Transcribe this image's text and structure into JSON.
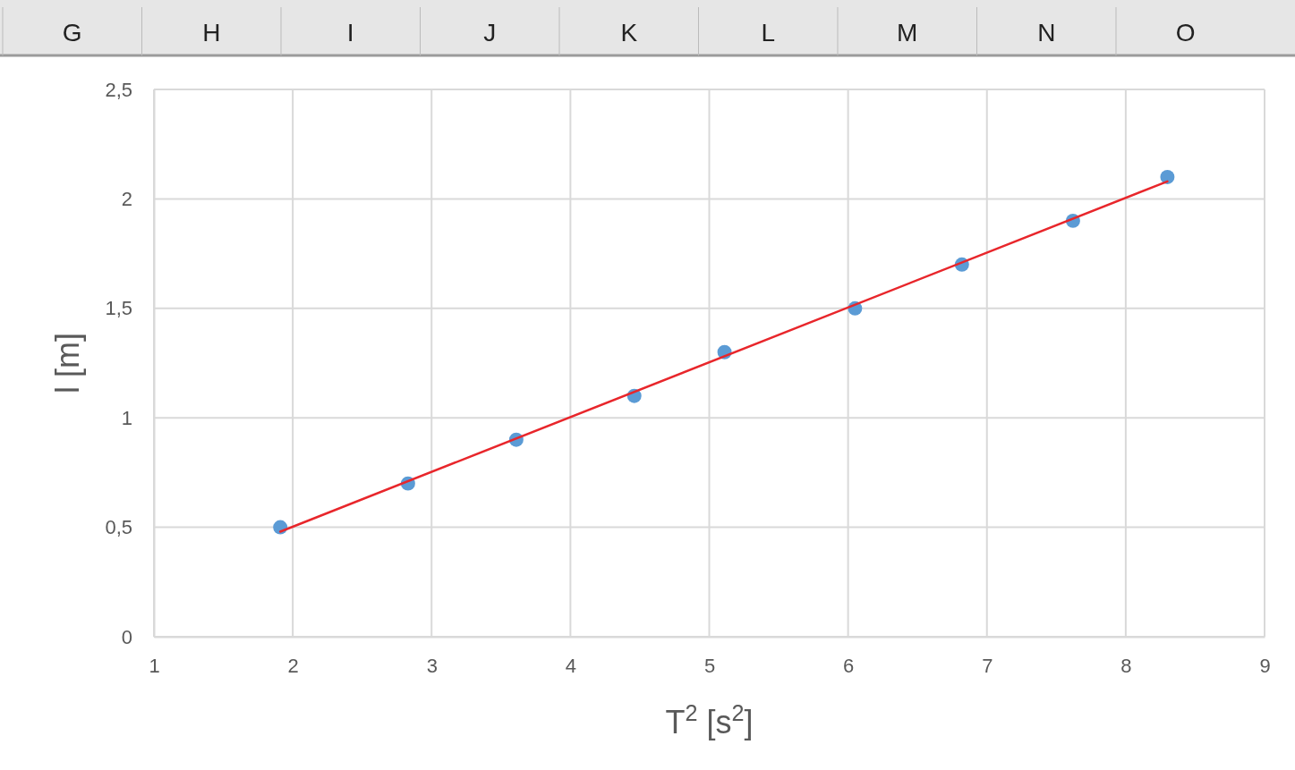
{
  "chart_data": {
    "type": "scatter",
    "xlabel": "T$^{2}$ [s$^{2}$]",
    "ylabel": "l [m]",
    "annotations": [
      "G",
      "H",
      "I",
      "J",
      "K",
      "L",
      "M",
      "N",
      "O"
    ],
    "xlim": [
      1,
      9
    ],
    "xticks": [
      1,
      2,
      3,
      4,
      5,
      6,
      7,
      8,
      9
    ],
    "ylim": [
      0,
      2.5
    ],
    "yticks": [
      0,
      {
        "value": 0.5,
        "label": "0,5"
      },
      1,
      {
        "value": 1.5,
        "label": "1,5"
      },
      2,
      {
        "value": 2.5,
        "label": "2,5"
      }
    ],
    "grid": true,
    "marker": "circle",
    "series": [
      {
        "color": "#5b9bd5",
        "x": [
          1.91,
          2.83,
          3.61,
          4.46,
          5.11,
          6.05,
          6.82,
          7.62,
          8.3
        ],
        "values": [
          0.5,
          0.7,
          0.9,
          1.1,
          1.3,
          1.5,
          1.7,
          1.9,
          2.1
        ]
      },
      {
        "type": "line",
        "color": "#e8262b",
        "marker": "none",
        "x": [
          1.91,
          8.3
        ],
        "values": [
          0.48,
          2.08
        ]
      }
    ]
  }
}
